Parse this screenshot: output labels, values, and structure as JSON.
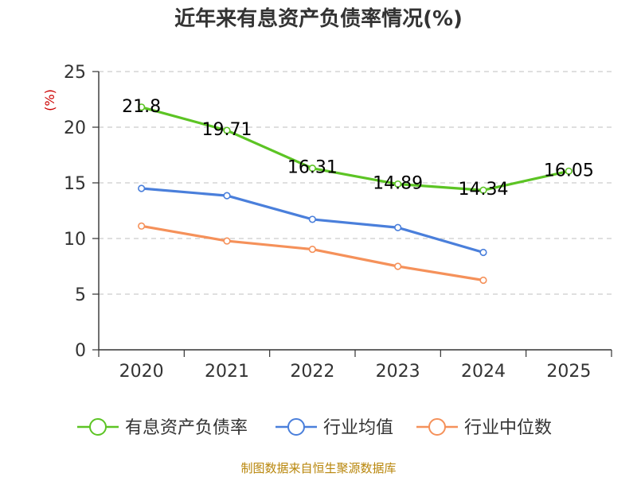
{
  "chart_data": {
    "type": "line",
    "title": "近年来有息资产负债率情况(%)",
    "ylabel": "(%)",
    "xlabel": "",
    "categories": [
      "2020",
      "2021",
      "2022",
      "2023",
      "2024",
      "2025"
    ],
    "ylim": [
      0,
      25
    ],
    "yticks": [
      0,
      5,
      10,
      15,
      20,
      25
    ],
    "grid": true,
    "legend_position": "bottom",
    "series": [
      {
        "name": "有息资产负债率",
        "color": "#5cc424",
        "values": [
          21.8,
          19.71,
          16.31,
          14.89,
          14.34,
          16.05
        ],
        "labels": [
          "21.8",
          "19.71",
          "16.31",
          "14.89",
          "14.34",
          "16.05"
        ]
      },
      {
        "name": "行业均值",
        "color": "#4a7fdb",
        "values": [
          14.5,
          13.85,
          11.72,
          10.98,
          8.75,
          null
        ]
      },
      {
        "name": "行业中位数",
        "color": "#f5915a",
        "values": [
          11.12,
          9.78,
          9.03,
          7.5,
          6.25,
          null
        ]
      }
    ],
    "source": "制图数据来自恒生聚源数据库"
  },
  "colors": {
    "unit_label": "#cc0000",
    "source_text": "#b8860b",
    "grid": "#cccccc",
    "axis": "#333333"
  }
}
